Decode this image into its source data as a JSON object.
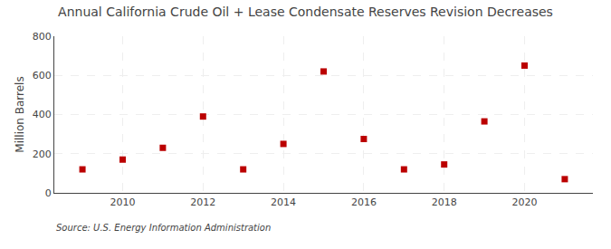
{
  "chart_data": {
    "type": "scatter",
    "title": "Annual California Crude Oil + Lease Condensate Reserves Revision Decreases",
    "ylabel": "Million Barrels",
    "annotations": [
      "Source: U.S. Energy Information Administration"
    ],
    "x": [
      2009,
      2010,
      2011,
      2012,
      2013,
      2014,
      2015,
      2016,
      2017,
      2018,
      2019,
      2020,
      2021
    ],
    "values": [
      120,
      170,
      230,
      390,
      120,
      250,
      620,
      275,
      120,
      145,
      365,
      650,
      70
    ],
    "color": "#bb0000",
    "marker": "square",
    "xlim": [
      2008.3,
      2021.7
    ],
    "xticks": [
      2010,
      2012,
      2014,
      2016,
      2018,
      2020
    ],
    "ylim": [
      0,
      800
    ],
    "yticks": [
      0,
      200,
      400,
      600,
      800
    ],
    "grid": true
  }
}
